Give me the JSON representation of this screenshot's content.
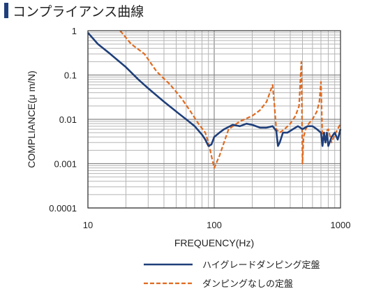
{
  "title": "コンプライアンス曲線",
  "chart_data": {
    "type": "line",
    "title": "コンプライアンス曲線",
    "xlabel": "FREQUENCY(Hz)",
    "ylabel": "COMPLIANCE(μ m/N)",
    "xscale": "log",
    "yscale": "log",
    "xlim": [
      10,
      1000
    ],
    "ylim": [
      0.0001,
      1
    ],
    "x_ticks": [
      "10",
      "100",
      "1000"
    ],
    "y_ticks": [
      "1",
      "0.1",
      "0.01",
      "0.001",
      "0.0001"
    ],
    "grid": true,
    "legend_position": "bottom",
    "series": [
      {
        "name": "ハイグレードダンピング定盤",
        "color": "#1f3f7a",
        "style": "solid",
        "x": [
          10,
          12,
          15,
          20,
          25,
          30,
          40,
          50,
          60,
          70,
          80,
          85,
          90,
          95,
          100,
          110,
          120,
          140,
          160,
          180,
          200,
          230,
          260,
          290,
          310,
          320,
          330,
          350,
          380,
          420,
          460,
          500,
          550,
          600,
          650,
          700,
          720,
          740,
          760,
          780,
          800,
          850,
          900,
          950,
          1000
        ],
        "y": [
          0.9,
          0.5,
          0.3,
          0.15,
          0.08,
          0.05,
          0.025,
          0.015,
          0.01,
          0.007,
          0.0045,
          0.0035,
          0.0025,
          0.0027,
          0.004,
          0.005,
          0.006,
          0.0075,
          0.007,
          0.008,
          0.0075,
          0.0065,
          0.0065,
          0.007,
          0.0055,
          0.0025,
          0.003,
          0.005,
          0.005,
          0.006,
          0.007,
          0.006,
          0.007,
          0.007,
          0.006,
          0.005,
          0.0025,
          0.005,
          0.003,
          0.005,
          0.0025,
          0.004,
          0.005,
          0.0035,
          0.006
        ]
      },
      {
        "name": "ダンピングなしの定盤",
        "color": "#e06a1f",
        "style": "dashed",
        "x": [
          18,
          22,
          28,
          35,
          45,
          55,
          65,
          75,
          85,
          90,
          95,
          100,
          110,
          130,
          160,
          200,
          230,
          260,
          280,
          290,
          300,
          310,
          330,
          360,
          400,
          440,
          470,
          490,
          500,
          510,
          530,
          560,
          600,
          650,
          680,
          700,
          720,
          750,
          800,
          850,
          900,
          1000
        ],
        "y": [
          1,
          0.5,
          0.3,
          0.12,
          0.06,
          0.03,
          0.015,
          0.008,
          0.005,
          0.003,
          0.0015,
          0.0008,
          0.0015,
          0.006,
          0.009,
          0.012,
          0.016,
          0.025,
          0.045,
          0.06,
          0.02,
          0.006,
          0.005,
          0.006,
          0.008,
          0.012,
          0.02,
          0.2,
          0.001,
          0.004,
          0.006,
          0.008,
          0.01,
          0.015,
          0.025,
          0.07,
          0.003,
          0.005,
          0.006,
          0.003,
          0.0045,
          0.008
        ]
      }
    ]
  }
}
